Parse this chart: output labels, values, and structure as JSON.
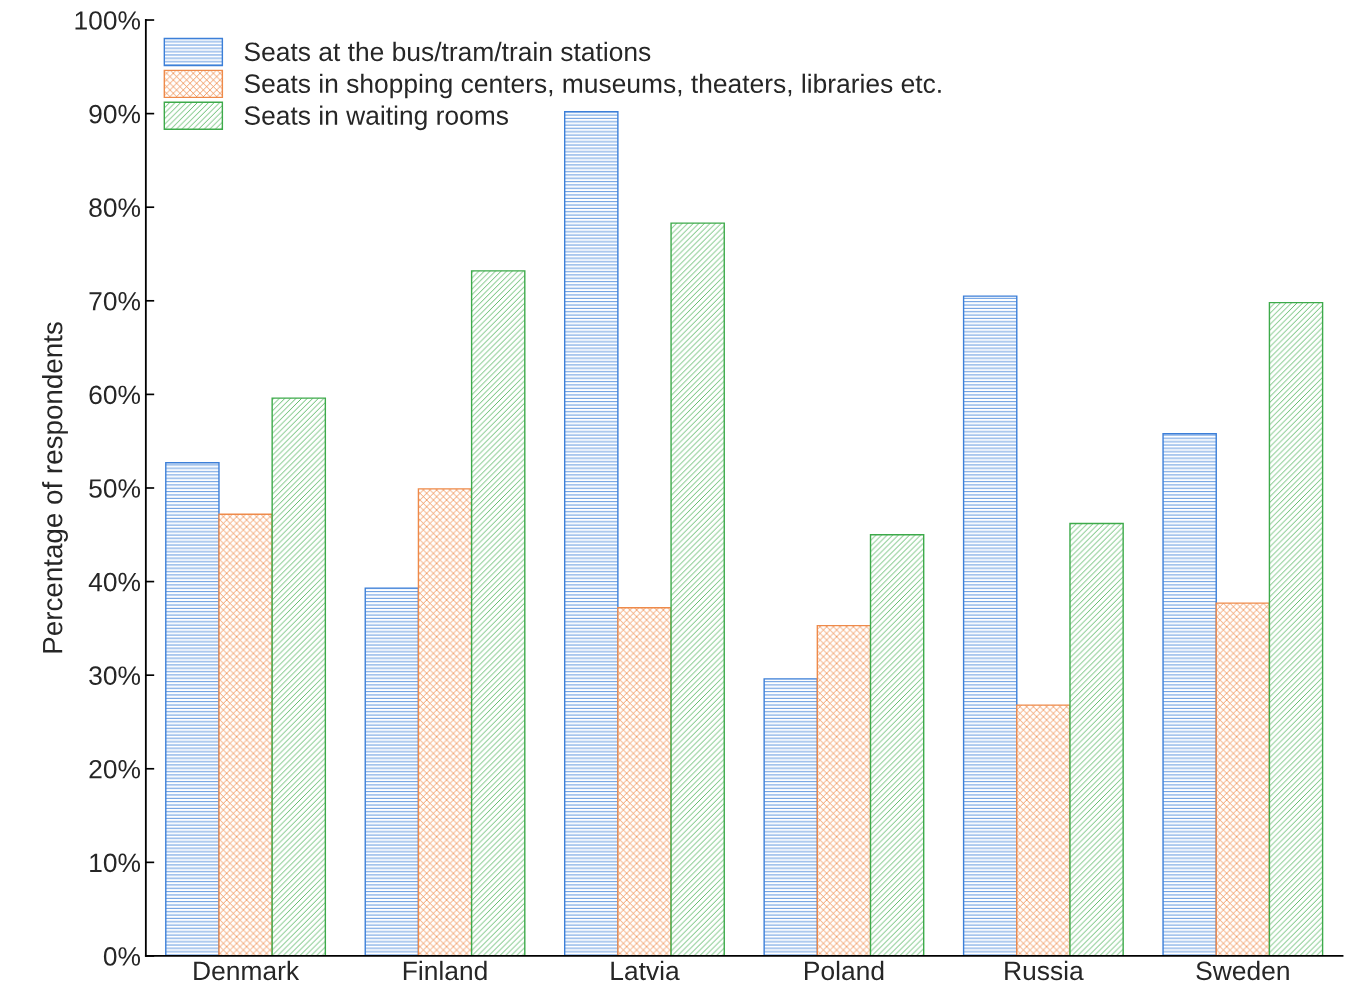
{
  "chart_data": {
    "type": "bar",
    "ylabel": "Percentage of respondents",
    "categories": [
      "Denmark",
      "Finland",
      "Latvia",
      "Poland",
      "Russia",
      "Sweden"
    ],
    "series": [
      {
        "name": "Seats at the bus/tram/train stations",
        "color": "#3c7fd8",
        "values": [
          52.7,
          39.3,
          90.2,
          29.6,
          70.5,
          55.8
        ]
      },
      {
        "name": "Seats in shopping centers, museums, theaters, libraries etc.",
        "color": "#ee8a4a",
        "values": [
          47.2,
          49.9,
          37.2,
          35.3,
          26.8,
          37.7
        ]
      },
      {
        "name": "Seats in waiting rooms",
        "color": "#3daa4a",
        "values": [
          59.6,
          73.2,
          78.3,
          45.0,
          46.2,
          69.8
        ]
      }
    ],
    "ylim": [
      0,
      100
    ],
    "yticks": [
      {
        "value": 0,
        "label": "0%"
      },
      {
        "value": 10,
        "label": "10%"
      },
      {
        "value": 20,
        "label": "20%"
      },
      {
        "value": 30,
        "label": "30%"
      },
      {
        "value": 40,
        "label": "40%"
      },
      {
        "value": 50,
        "label": "50%"
      },
      {
        "value": 60,
        "label": "60%"
      },
      {
        "value": 70,
        "label": "70%"
      },
      {
        "value": 80,
        "label": "80%"
      },
      {
        "value": 90,
        "label": "90%"
      },
      {
        "value": 100,
        "label": "100%"
      }
    ],
    "grid": false,
    "legend": "top left"
  }
}
